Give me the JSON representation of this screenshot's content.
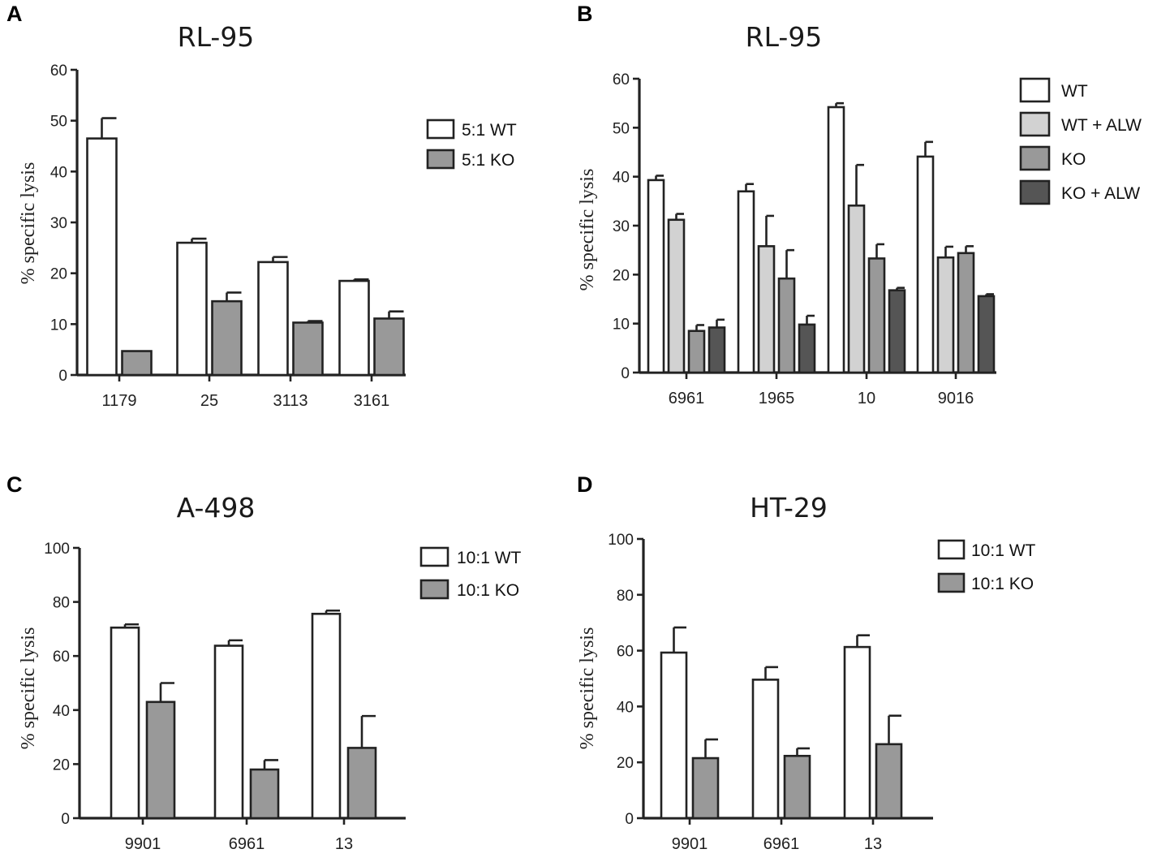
{
  "chart_data": [
    {
      "id": "A",
      "type": "bar",
      "title": "RL-95",
      "ylabel": "% specific lysis",
      "xlabel": "",
      "ylim": [
        0,
        60
      ],
      "yticks": [
        0,
        10,
        20,
        30,
        40,
        50,
        60
      ],
      "categories": [
        "1179",
        "25",
        "3113",
        "3161"
      ],
      "series": [
        {
          "name": "5:1 WT",
          "color": "#ffffff",
          "values": [
            46.5,
            26,
            22.2,
            18.5
          ],
          "errors": [
            4,
            0.8,
            1,
            0.3
          ]
        },
        {
          "name": "5:1 KO",
          "color": "#999999",
          "values": [
            4.7,
            14.5,
            10.3,
            11.1
          ],
          "errors": [
            0,
            1.7,
            0.3,
            1.4
          ]
        }
      ],
      "legend": "top-right"
    },
    {
      "id": "B",
      "type": "bar",
      "title": "RL-95",
      "ylabel": "% specific lysis",
      "xlabel": "",
      "ylim": [
        0,
        60
      ],
      "yticks": [
        0,
        10,
        20,
        30,
        40,
        50,
        60
      ],
      "categories": [
        "6961",
        "1965",
        "10",
        "9016"
      ],
      "series": [
        {
          "name": "WT",
          "color": "#ffffff",
          "values": [
            39.3,
            37,
            54.2,
            44.1
          ],
          "errors": [
            0.9,
            1.5,
            0.8,
            3
          ]
        },
        {
          "name": "WT + ALW",
          "color": "#d2d2d2",
          "values": [
            31.2,
            25.8,
            34.1,
            23.5
          ],
          "errors": [
            1.2,
            6.2,
            8.3,
            2.2
          ]
        },
        {
          "name": "KO",
          "color": "#999999",
          "values": [
            8.5,
            19.2,
            23.3,
            24.4
          ],
          "errors": [
            1.2,
            5.8,
            2.9,
            1.4
          ]
        },
        {
          "name": "KO + ALW",
          "color": "#555555",
          "values": [
            9.2,
            9.8,
            16.8,
            15.6
          ],
          "errors": [
            1.6,
            1.8,
            0.5,
            0.4
          ]
        }
      ],
      "legend": "top-right"
    },
    {
      "id": "C",
      "type": "bar",
      "title": "A-498",
      "ylabel": "% specific lysis",
      "xlabel": "",
      "ylim": [
        0,
        100
      ],
      "yticks": [
        0,
        20,
        40,
        60,
        80,
        100
      ],
      "categories": [
        "9901",
        "6961",
        "13"
      ],
      "series": [
        {
          "name": "10:1 WT",
          "color": "#ffffff",
          "values": [
            70.5,
            63.8,
            75.6
          ],
          "errors": [
            1.2,
            2,
            1.2
          ]
        },
        {
          "name": "10:1 KO",
          "color": "#999999",
          "values": [
            43,
            18,
            26
          ],
          "errors": [
            7,
            3.5,
            11.8
          ]
        }
      ],
      "legend": "top-right"
    },
    {
      "id": "D",
      "type": "bar",
      "title": "HT-29",
      "ylabel": "% specific lysis",
      "xlabel": "",
      "ylim": [
        0,
        100
      ],
      "yticks": [
        0,
        20,
        40,
        60,
        80,
        100
      ],
      "categories": [
        "9901",
        "6961",
        "13"
      ],
      "series": [
        {
          "name": "10:1 WT",
          "color": "#ffffff",
          "values": [
            59.3,
            49.6,
            61.3
          ],
          "errors": [
            9,
            4.5,
            4.2
          ]
        },
        {
          "name": "10:1 KO",
          "color": "#999999",
          "values": [
            21.5,
            22.3,
            26.5
          ],
          "errors": [
            6.7,
            2.7,
            10.2
          ]
        }
      ],
      "legend": "top-right"
    }
  ]
}
